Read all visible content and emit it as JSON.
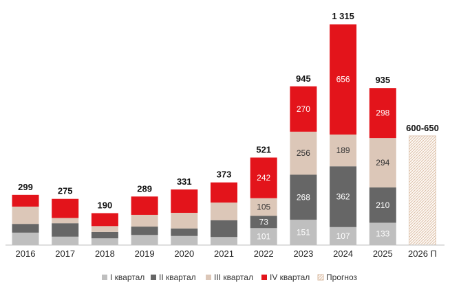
{
  "chart_data": {
    "type": "bar",
    "stacked": true,
    "title": "",
    "xlabel": "",
    "ylabel": "",
    "ylim": [
      0,
      1400
    ],
    "grid": false,
    "legend_position": "bottom",
    "categories": [
      "2016",
      "2017",
      "2018",
      "2019",
      "2020",
      "2021",
      "2022",
      "2023",
      "2024",
      "2025",
      "2026 П"
    ],
    "totals": [
      "299",
      "275",
      "190",
      "289",
      "331",
      "373",
      "521",
      "945",
      "1 315",
      "935",
      "600-650"
    ],
    "total_values": [
      299,
      275,
      190,
      289,
      331,
      373,
      521,
      945,
      1315,
      935,
      650
    ],
    "series": [
      {
        "name": "I квартал",
        "color": "#bfbfbf",
        "text_color": "#ffffff",
        "values": [
          74,
          50,
          40,
          60,
          54,
          48,
          101,
          151,
          107,
          133,
          null
        ],
        "labels": [
          null,
          null,
          null,
          null,
          null,
          null,
          "101",
          "151",
          "107",
          "133",
          null
        ]
      },
      {
        "name": "II квартал",
        "color": "#666666",
        "text_color": "#ffffff",
        "values": [
          52,
          80,
          38,
          50,
          45,
          100,
          73,
          268,
          362,
          210,
          null
        ],
        "labels": [
          null,
          null,
          null,
          null,
          null,
          null,
          "73",
          "268",
          "362",
          "210",
          null
        ]
      },
      {
        "name": "III квартал",
        "color": "#dcc7b8",
        "text_color": "#333333",
        "values": [
          103,
          31,
          35,
          70,
          93,
          105,
          105,
          256,
          189,
          294,
          null
        ],
        "labels": [
          null,
          null,
          null,
          null,
          null,
          null,
          "105",
          "256",
          "189",
          "294",
          null
        ]
      },
      {
        "name": "IV квартал",
        "color": "#e3141b",
        "text_color": "#ffffff",
        "values": [
          70,
          114,
          77,
          109,
          139,
          120,
          242,
          270,
          656,
          298,
          null
        ],
        "labels": [
          null,
          null,
          null,
          null,
          null,
          null,
          "242",
          "270",
          "656",
          "298",
          null
        ]
      },
      {
        "name": "Прогноз",
        "color": "#e8d5c4",
        "text_color": "#333333",
        "pattern": "hatched",
        "values": [
          null,
          null,
          null,
          null,
          null,
          null,
          null,
          null,
          null,
          null,
          650
        ],
        "labels": [
          null,
          null,
          null,
          null,
          null,
          null,
          null,
          null,
          null,
          null,
          null
        ]
      }
    ]
  }
}
